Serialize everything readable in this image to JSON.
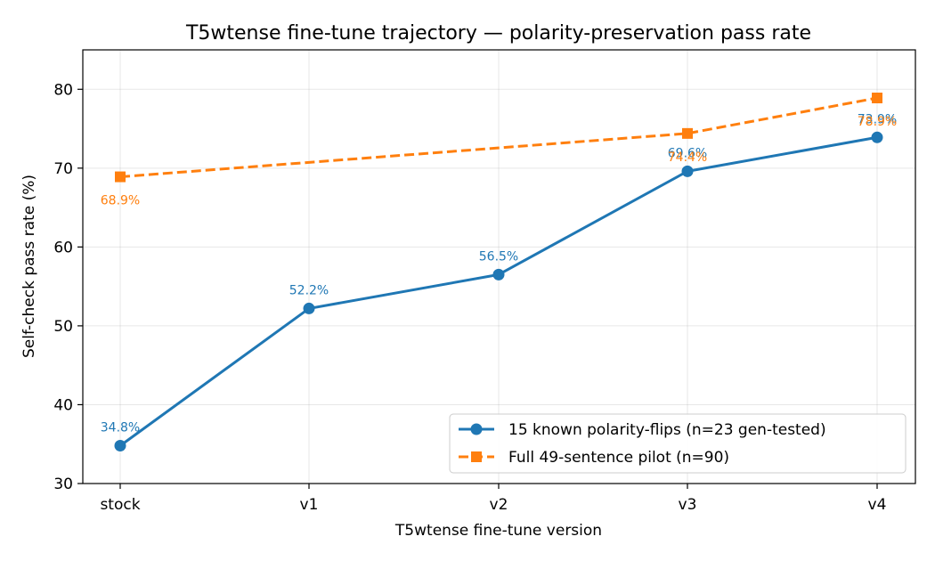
{
  "chart_data": {
    "type": "line",
    "title": "T5wtense fine-tune trajectory — polarity-preservation pass rate",
    "xlabel": "T5wtense fine-tune version",
    "ylabel": "Self-check pass rate (%)",
    "categories": [
      "stock",
      "v1",
      "v2",
      "v3",
      "v4"
    ],
    "ylim": [
      30,
      85
    ],
    "yticks": [
      30,
      40,
      50,
      60,
      70,
      80
    ],
    "grid": true,
    "legend_position": "lower-right",
    "series": [
      {
        "name": "15 known polarity-flips (n=23 gen-tested)",
        "color": "#1f77b4",
        "marker": "circle",
        "linestyle": "solid",
        "points": [
          {
            "x": "stock",
            "y": 34.8,
            "label": "34.8%"
          },
          {
            "x": "v1",
            "y": 52.2,
            "label": "52.2%"
          },
          {
            "x": "v2",
            "y": 56.5,
            "label": "56.5%"
          },
          {
            "x": "v3",
            "y": 69.6,
            "label": "69.6%"
          },
          {
            "x": "v4",
            "y": 73.9,
            "label": "73.9%"
          }
        ]
      },
      {
        "name": "Full 49-sentence pilot (n=90)",
        "color": "#ff7f0e",
        "marker": "square",
        "linestyle": "dashed",
        "points": [
          {
            "x": "stock",
            "y": 68.9,
            "label": "68.9%"
          },
          {
            "x": "v3",
            "y": 74.4,
            "label": "74.4%"
          },
          {
            "x": "v4",
            "y": 78.9,
            "label": "78.9%"
          }
        ]
      }
    ]
  }
}
